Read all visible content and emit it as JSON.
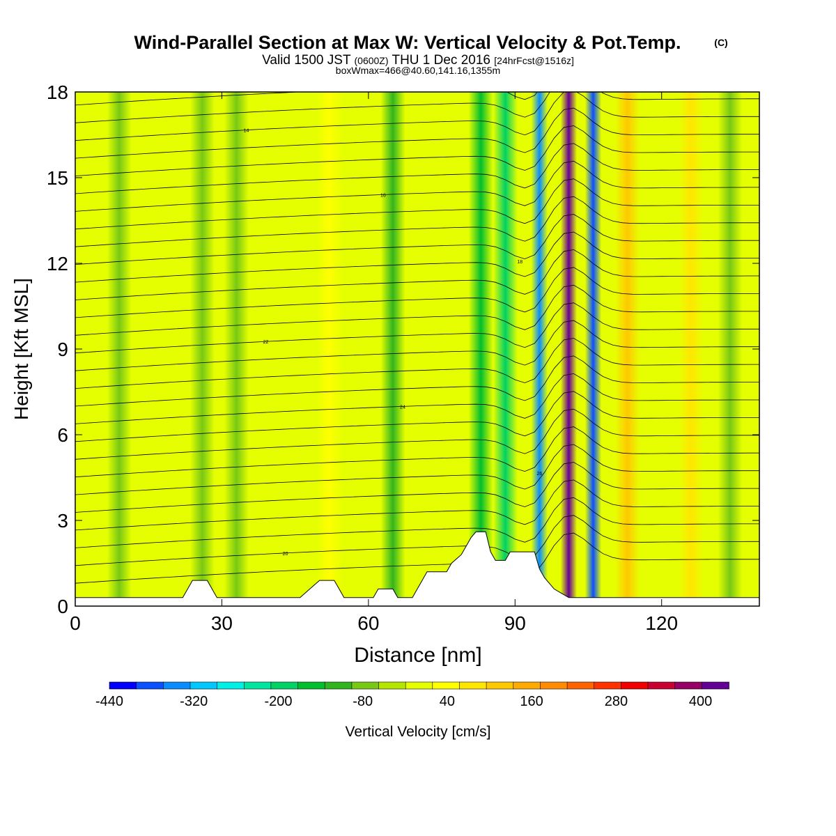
{
  "header": {
    "title": "Wind-Parallel Section at Max W: Vertical Velocity & Pot.Temp.",
    "copyright": "(C)",
    "valid_prefix": "Valid 1500 JST",
    "valid_utc": "(0600Z)",
    "valid_date": "THU 1 Dec 2016",
    "forecast": "[24hrFcst@1516z]",
    "box_info": "boxWmax=466@40.60,141.16,1355m"
  },
  "chart_data": {
    "type": "heatmap",
    "xlabel": "Distance [nm]",
    "ylabel": "Height [Kft MSL]",
    "xlim": [
      0,
      140
    ],
    "ylim": [
      0,
      18
    ],
    "x_ticks": [
      "0",
      "30",
      "60",
      "90",
      "120"
    ],
    "y_ticks": [
      "0",
      "3",
      "6",
      "9",
      "12",
      "15",
      "18"
    ],
    "colorbar": {
      "label": "Vertical Velocity [cm/s]",
      "tick_labels": [
        "-440",
        "-320",
        "-200",
        "-80",
        "40",
        "160",
        "280",
        "400"
      ],
      "levels": [
        -440,
        -400,
        -360,
        -320,
        -280,
        -240,
        -200,
        -160,
        -120,
        -80,
        -40,
        0,
        40,
        80,
        120,
        160,
        200,
        240,
        280,
        320,
        360,
        400,
        440
      ],
      "colors": [
        "#0000ff",
        "#0a50ff",
        "#0a8cff",
        "#00c8ff",
        "#00f0e6",
        "#00e6a0",
        "#00d264",
        "#00be2d",
        "#32b41e",
        "#78c814",
        "#b4e600",
        "#e6ff00",
        "#ffff00",
        "#ffe600",
        "#ffc800",
        "#ffaa00",
        "#ff8c00",
        "#ff6400",
        "#ff3200",
        "#f00000",
        "#c80032",
        "#960064",
        "#640096"
      ]
    },
    "w_features": [
      {
        "x": 9,
        "w": -60
      },
      {
        "x": 26,
        "w": -80
      },
      {
        "x": 33,
        "w": -50
      },
      {
        "x": 52,
        "w": 70
      },
      {
        "x": 65,
        "w": -90
      },
      {
        "x": 83,
        "w": -150
      },
      {
        "x": 88,
        "w": -180
      },
      {
        "x": 95,
        "w": -330
      },
      {
        "x": 101,
        "w": 466
      },
      {
        "x": 106,
        "w": -400
      },
      {
        "x": 113,
        "w": 150
      },
      {
        "x": 126,
        "w": 100
      },
      {
        "x": 134,
        "w": -70
      }
    ],
    "theta_contour_labels": [
      "20",
      "26",
      "24",
      "22",
      "18",
      "16",
      "14"
    ],
    "terrain": [
      [
        0,
        0.3
      ],
      [
        22,
        0.3
      ],
      [
        24,
        0.9
      ],
      [
        27,
        0.9
      ],
      [
        29,
        0.3
      ],
      [
        46,
        0.3
      ],
      [
        48,
        0.6
      ],
      [
        50,
        0.9
      ],
      [
        53,
        0.9
      ],
      [
        54,
        0.6
      ],
      [
        55,
        0.3
      ],
      [
        61,
        0.3
      ],
      [
        62,
        0.6
      ],
      [
        65,
        0.6
      ],
      [
        66,
        0.3
      ],
      [
        69,
        0.3
      ],
      [
        70,
        0.6
      ],
      [
        71,
        0.9
      ],
      [
        72,
        1.2
      ],
      [
        76,
        1.2
      ],
      [
        77,
        1.5
      ],
      [
        79,
        1.8
      ],
      [
        81,
        2.4
      ],
      [
        82,
        2.6
      ],
      [
        84,
        2.6
      ],
      [
        85,
        1.9
      ],
      [
        86,
        1.6
      ],
      [
        88,
        1.6
      ],
      [
        89,
        1.9
      ],
      [
        94,
        1.9
      ],
      [
        95,
        1.3
      ],
      [
        96,
        1.0
      ],
      [
        98,
        0.6
      ],
      [
        101,
        0.3
      ],
      [
        140,
        0.3
      ]
    ]
  }
}
